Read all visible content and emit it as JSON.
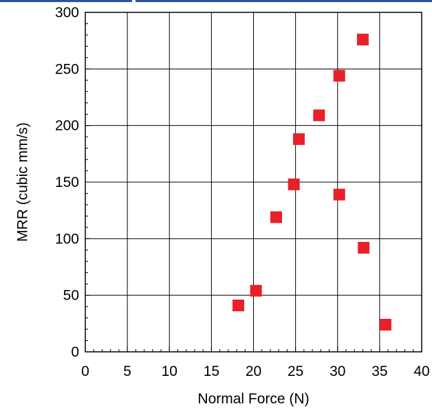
{
  "chart_data": {
    "type": "scatter",
    "xlabel": "Normal Force (N)",
    "ylabel": "MRR (cubic mm/s)",
    "xlim": [
      0,
      40
    ],
    "ylim": [
      0,
      300
    ],
    "xticks": [
      0,
      5,
      10,
      15,
      20,
      25,
      30,
      35,
      40
    ],
    "yticks": [
      0,
      50,
      100,
      150,
      200,
      250,
      300
    ],
    "grid": true,
    "marker": "square",
    "color": "#e8202a",
    "points": [
      {
        "x": 18.2,
        "y": 41
      },
      {
        "x": 20.3,
        "y": 54
      },
      {
        "x": 22.7,
        "y": 119
      },
      {
        "x": 24.8,
        "y": 148
      },
      {
        "x": 25.4,
        "y": 188
      },
      {
        "x": 27.8,
        "y": 209
      },
      {
        "x": 30.2,
        "y": 244
      },
      {
        "x": 30.2,
        "y": 139
      },
      {
        "x": 33.1,
        "y": 92
      },
      {
        "x": 33.0,
        "y": 276
      },
      {
        "x": 35.7,
        "y": 24
      }
    ]
  }
}
